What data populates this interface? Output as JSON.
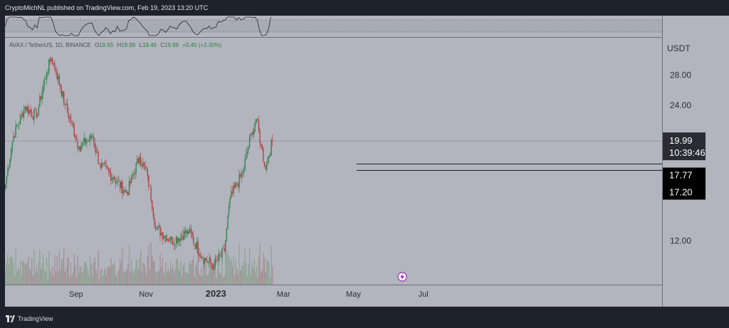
{
  "header": {
    "published_by": "CryptoMichNL published on TradingView.com, Feb 19, 2023 13:20 UTC"
  },
  "footer": {
    "brand": "TradingView"
  },
  "legend": {
    "symbol": "AVAX / TetherUS, 1D, BINANCE",
    "o_label": "O",
    "o_value": "19.55",
    "h_label": "H",
    "h_value": "19.99",
    "l_label": "L",
    "l_value": "19.46",
    "c_label": "C",
    "c_value": "19.99",
    "change": "+0.45 (+2.30%)"
  },
  "price_axis": {
    "currency": "USDT",
    "ticks": [
      "28.00",
      "24.00",
      "12.00"
    ],
    "last_price": "19.99",
    "countdown": "10:39:46",
    "level_1": "17.77",
    "level_2": "17.20"
  },
  "time_axis": {
    "labels": [
      "Sep",
      "Nov",
      "2023",
      "Mar",
      "May",
      "Jul"
    ]
  },
  "colors": {
    "up": "#2f7d45",
    "down": "#b13a3a",
    "panel_bg": "#b2b5be",
    "line": "#1d1f24",
    "label_dark": "#2b2b33",
    "label_black": "#000000",
    "text": "#e8e8e8"
  },
  "chart_data": {
    "type": "candlestick",
    "interval": "1D",
    "yscale": "log",
    "ylim": [
      9.6,
      34.0
    ],
    "price_ticks": [
      28.0,
      24.0,
      12.0
    ],
    "last_price": 19.99,
    "horizontal_levels": [
      17.77,
      17.2
    ],
    "key_closes": [
      {
        "x": "2022-07-01",
        "y": 16.0
      },
      {
        "x": "2022-07-08",
        "y": 20.5
      },
      {
        "x": "2022-07-18",
        "y": 23.8
      },
      {
        "x": "2022-07-28",
        "y": 22.6
      },
      {
        "x": "2022-08-06",
        "y": 28.4
      },
      {
        "x": "2022-08-10",
        "y": 30.6
      },
      {
        "x": "2022-08-14",
        "y": 28.6
      },
      {
        "x": "2022-08-22",
        "y": 24.0
      },
      {
        "x": "2022-09-03",
        "y": 19.4
      },
      {
        "x": "2022-09-15",
        "y": 20.4
      },
      {
        "x": "2022-09-21",
        "y": 17.8
      },
      {
        "x": "2022-10-03",
        "y": 16.6
      },
      {
        "x": "2022-10-15",
        "y": 15.3
      },
      {
        "x": "2022-10-26",
        "y": 18.4
      },
      {
        "x": "2022-11-02",
        "y": 16.7
      },
      {
        "x": "2022-11-09",
        "y": 12.8
      },
      {
        "x": "2022-11-23",
        "y": 12.0
      },
      {
        "x": "2022-12-08",
        "y": 12.6
      },
      {
        "x": "2022-12-20",
        "y": 11.0
      },
      {
        "x": "2022-12-30",
        "y": 10.6
      },
      {
        "x": "2023-01-08",
        "y": 11.4
      },
      {
        "x": "2023-01-13",
        "y": 14.9
      },
      {
        "x": "2023-01-24",
        "y": 17.0
      },
      {
        "x": "2023-02-01",
        "y": 20.9
      },
      {
        "x": "2023-02-05",
        "y": 22.3
      },
      {
        "x": "2023-02-09",
        "y": 19.5
      },
      {
        "x": "2023-02-13",
        "y": 17.3
      },
      {
        "x": "2023-02-15",
        "y": 18.4
      },
      {
        "x": "2023-02-19",
        "y": 19.99
      }
    ]
  }
}
